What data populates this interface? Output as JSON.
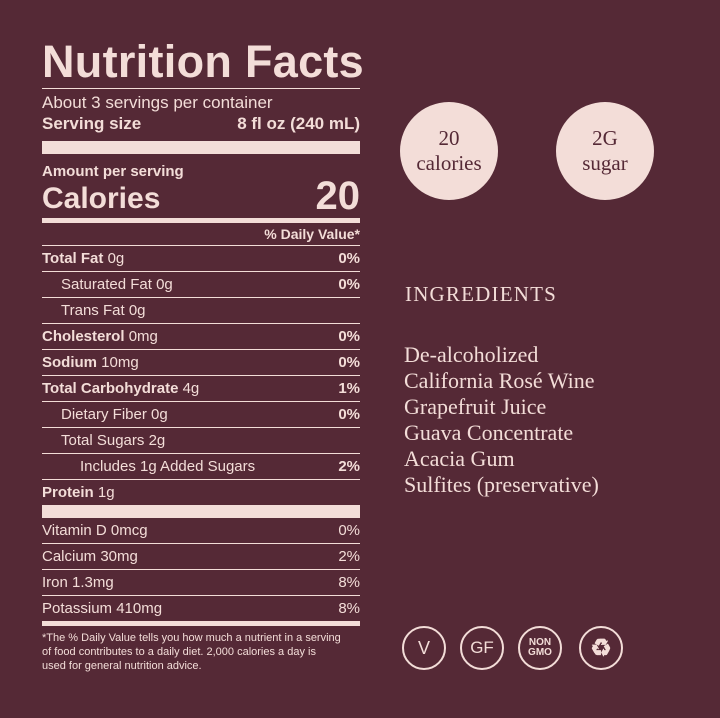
{
  "label": {
    "title": "Nutrition Facts",
    "servings": "About 3 servings per container",
    "serving_size_label": "Serving size",
    "serving_size_value": "8 fl oz (240 mL)",
    "amount_per_serving": "Amount per serving",
    "calories_label": "Calories",
    "calories_value": "20",
    "daily_value_header": "% Daily Value*",
    "nutrients": [
      {
        "name": "Total Fat",
        "amount": "0g",
        "dv": "0%"
      },
      {
        "name": "Saturated Fat",
        "amount": "0g",
        "dv": "0%"
      },
      {
        "name": "Trans Fat",
        "amount": "0g",
        "dv": ""
      },
      {
        "name": "Cholesterol",
        "amount": "0mg",
        "dv": "0%"
      },
      {
        "name": "Sodium",
        "amount": "10mg",
        "dv": "0%"
      },
      {
        "name": "Total Carbohydrate",
        "amount": "4g",
        "dv": "1%"
      },
      {
        "name": "Dietary Fiber",
        "amount": "0g",
        "dv": "0%"
      },
      {
        "name": "Total Sugars",
        "amount": "2g",
        "dv": ""
      },
      {
        "name": "Includes 1g Added Sugars",
        "amount": "",
        "dv": "2%"
      },
      {
        "name": "Protein",
        "amount": "1g",
        "dv": ""
      }
    ],
    "vitamins": [
      {
        "name": "Vitamin D 0mcg",
        "dv": "0%"
      },
      {
        "name": "Calcium 30mg",
        "dv": "2%"
      },
      {
        "name": "Iron 1.3mg",
        "dv": "8%"
      },
      {
        "name": "Potassium 410mg",
        "dv": "8%"
      }
    ],
    "footnote": "*The % Daily Value tells you how much a nutrient in a serving of food contributes to a daily diet. 2,000 calories a day is used for general nutrition advice."
  },
  "badges": [
    {
      "line1": "20",
      "line2": "calories"
    },
    {
      "line1": "2G",
      "line2": "sugar"
    }
  ],
  "ingredients": {
    "heading": "INGREDIENTS",
    "items": [
      "De-alcoholized",
      "California Rosé Wine",
      "Grapefruit Juice",
      "Guava Concentrate",
      "Acacia Gum",
      "Sulfites (preservative)"
    ]
  },
  "icons": [
    {
      "name": "vegan-icon",
      "text": "V"
    },
    {
      "name": "gluten-free-icon",
      "text": "GF"
    },
    {
      "name": "non-gmo-icon",
      "text": "NON GMO"
    },
    {
      "name": "recycle-icon",
      "text": ""
    }
  ],
  "colors": {
    "background": "#552936",
    "foreground": "#f3ddd8"
  }
}
